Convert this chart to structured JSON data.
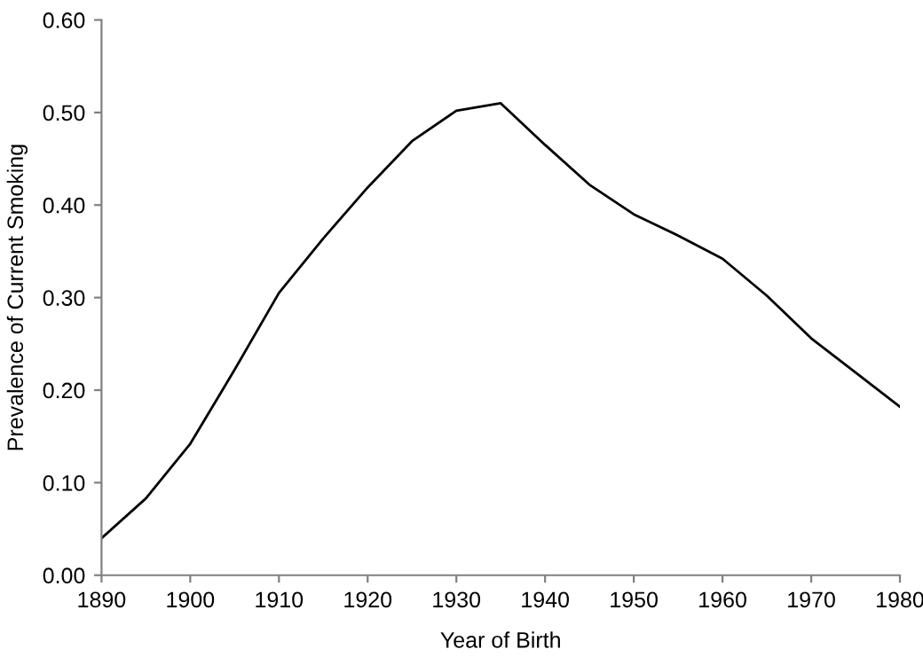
{
  "chart_data": {
    "type": "line",
    "xlabel": "Year of Birth",
    "ylabel": "Prevalence of Current Smoking",
    "x": [
      1890,
      1895,
      1900,
      1905,
      1910,
      1915,
      1920,
      1925,
      1930,
      1935,
      1940,
      1945,
      1950,
      1955,
      1960,
      1965,
      1970,
      1975,
      1980
    ],
    "series": [
      {
        "color": "#000000",
        "values": [
          0.04,
          0.083,
          0.142,
          0.222,
          0.305,
          0.364,
          0.419,
          0.469,
          0.502,
          0.51,
          0.465,
          0.422,
          0.39,
          0.367,
          0.342,
          0.302,
          0.256,
          0.219,
          0.182
        ]
      }
    ],
    "xlim": [
      1890,
      1980
    ],
    "xticks": [
      1890,
      1900,
      1910,
      1920,
      1930,
      1940,
      1950,
      1960,
      1970,
      1980
    ],
    "ylim": [
      0,
      0.6
    ],
    "yticks": [
      {
        "value": 0,
        "label": "0.00"
      },
      {
        "value": 0.1,
        "label": "0.10"
      },
      {
        "value": 0.2,
        "label": "0.20"
      },
      {
        "value": 0.3,
        "label": "0.30"
      },
      {
        "value": 0.4,
        "label": "0.40"
      },
      {
        "value": 0.5,
        "label": "0.50"
      },
      {
        "value": 0.6,
        "label": "0.60"
      }
    ],
    "grid": false,
    "marker": "none",
    "line_style": "solid"
  }
}
